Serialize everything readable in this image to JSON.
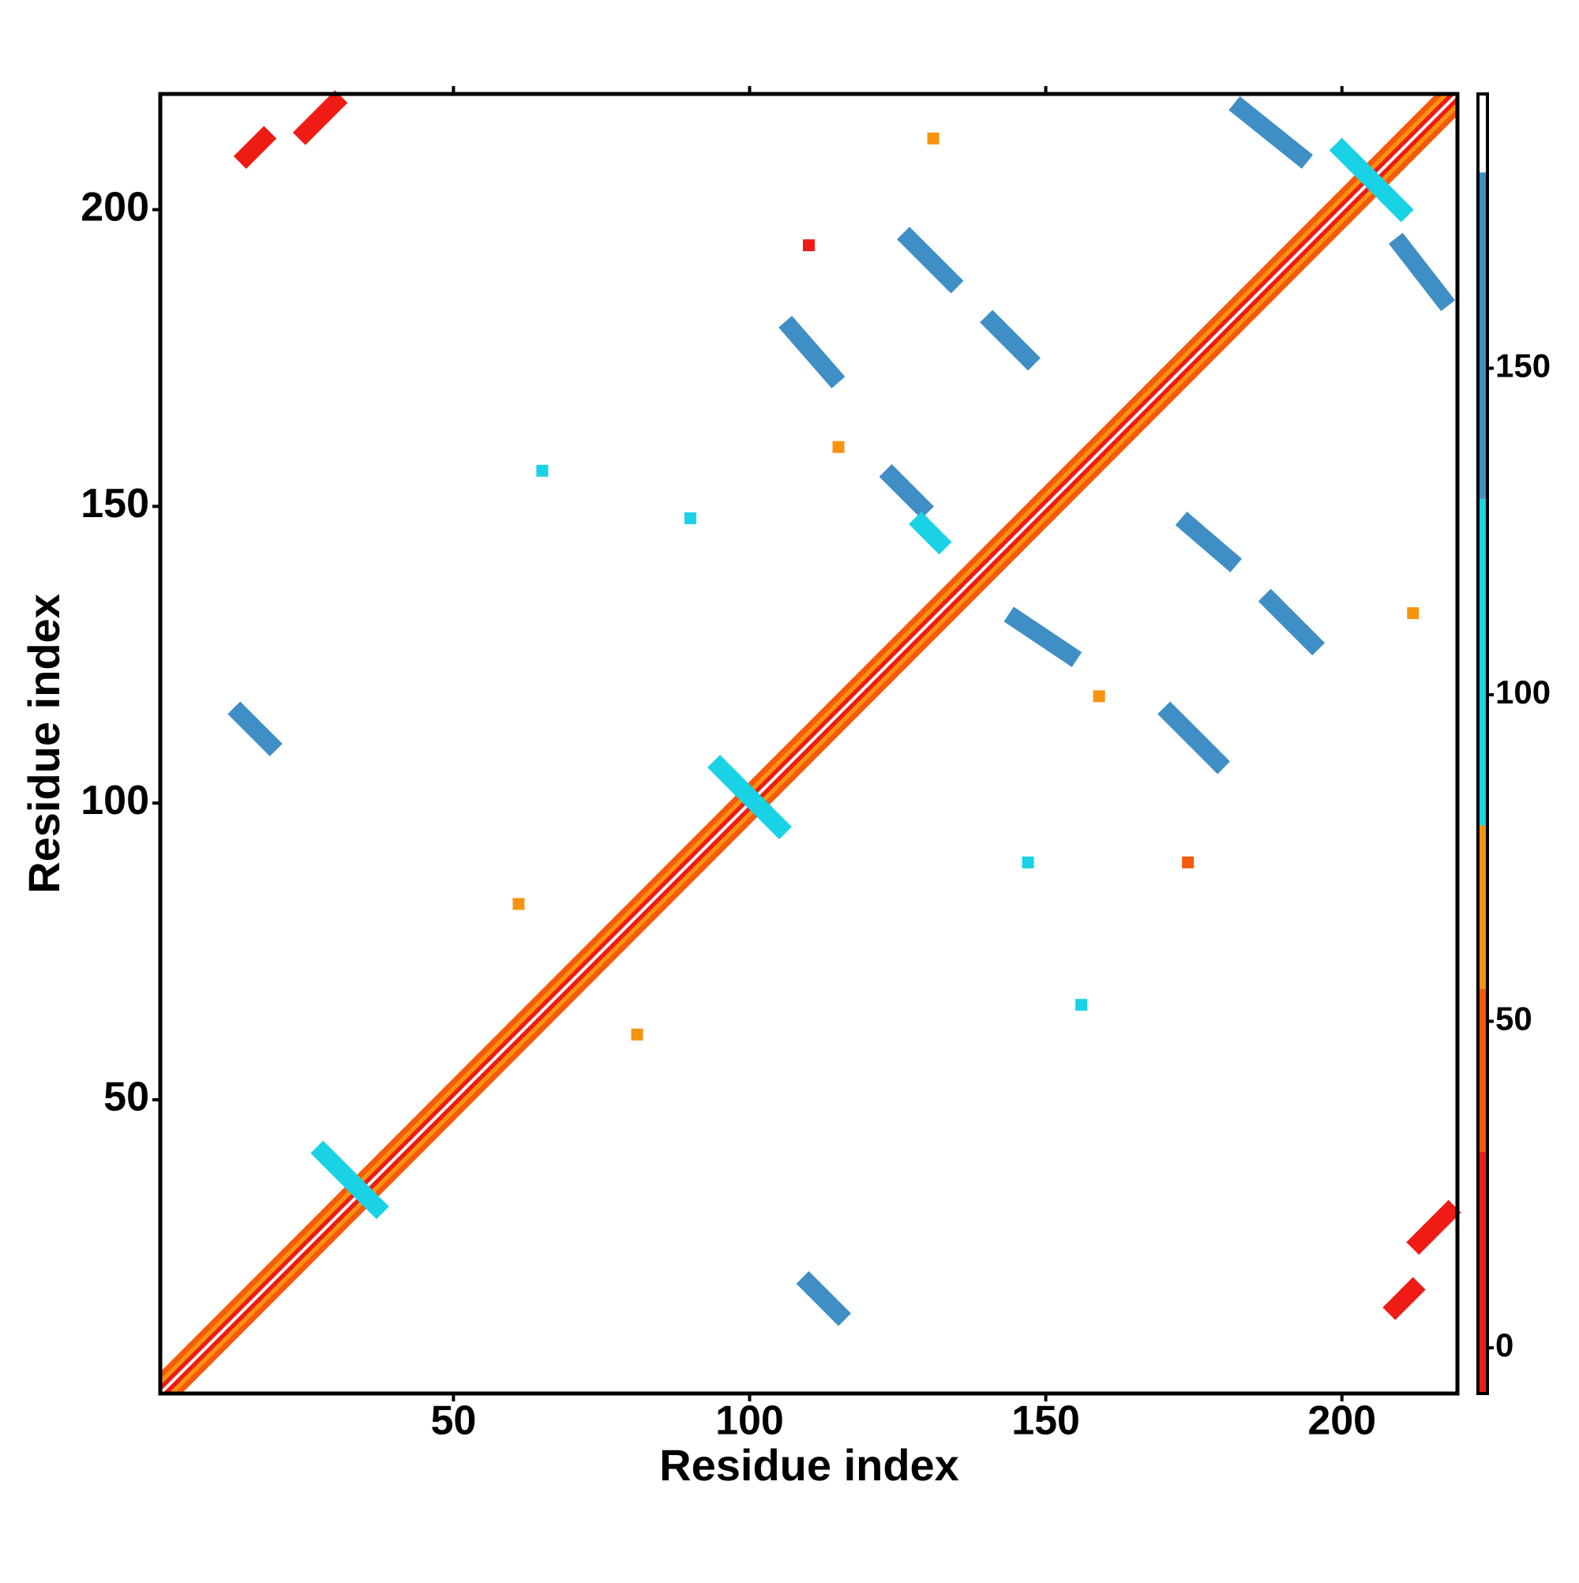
{
  "chart_data": {
    "type": "heatmap",
    "xlabel": "Residue index",
    "ylabel": "Residue index",
    "xlim": [
      0.5,
      219.5
    ],
    "ylim": [
      0.5,
      219.5
    ],
    "xticks": [
      50,
      100,
      150,
      200
    ],
    "yticks": [
      50,
      100,
      150,
      200
    ],
    "colorbar": {
      "lim": [
        -7,
        192
      ],
      "ticks": [
        0,
        50,
        100,
        150
      ],
      "bands": [
        {
          "range": [
            -7,
            30
          ],
          "color": "#ee1c14"
        },
        {
          "range": [
            30,
            55
          ],
          "color": "#f55a0a"
        },
        {
          "range": [
            55,
            80
          ],
          "color": "#f7930f"
        },
        {
          "range": [
            80,
            130
          ],
          "color": "#19d2e6"
        },
        {
          "range": [
            130,
            180
          ],
          "color": "#3f8fc6"
        },
        {
          "range": [
            180,
            192
          ],
          "color": "#ffffff"
        }
      ]
    },
    "diagonal": [
      {
        "offset": 1,
        "value": 15
      },
      {
        "offset": -1,
        "value": 15
      },
      {
        "offset": 2,
        "value": 60
      },
      {
        "offset": -2,
        "value": 60
      },
      {
        "offset": 3,
        "value": 45
      },
      {
        "offset": -3,
        "value": 45
      }
    ],
    "contacts": [
      {
        "x": [
          25,
          30
        ],
        "y": [
          213,
          218
        ],
        "value": 15
      },
      {
        "x": [
          15,
          18
        ],
        "y": [
          209,
          212
        ],
        "value": 10
      },
      {
        "x": [
          213,
          218
        ],
        "y": [
          26,
          31
        ],
        "value": 15
      },
      {
        "x": [
          209,
          212
        ],
        "y": [
          15,
          18
        ],
        "value": 10
      },
      {
        "x": [
          183,
          193
        ],
        "y": [
          217,
          209
        ],
        "value": 150
      },
      {
        "x": [
          210,
          217
        ],
        "y": [
          194,
          185
        ],
        "value": 150
      },
      {
        "x": [
          127,
          134
        ],
        "y": [
          195,
          188
        ],
        "value": 140
      },
      {
        "x": [
          107,
          114
        ],
        "y": [
          180,
          172
        ],
        "value": 150
      },
      {
        "x": [
          141,
          147
        ],
        "y": [
          181,
          175
        ],
        "value": 150
      },
      {
        "x": [
          124,
          129
        ],
        "y": [
          155,
          150
        ],
        "value": 140
      },
      {
        "x": [
          129,
          132
        ],
        "y": [
          147,
          144
        ],
        "value": 130
      },
      {
        "x": [
          174,
          181
        ],
        "y": [
          147,
          141
        ],
        "value": 150
      },
      {
        "x": [
          188,
          195
        ],
        "y": [
          134,
          127
        ],
        "value": 140
      },
      {
        "x": [
          145,
          154
        ],
        "y": [
          131,
          125
        ],
        "value": 140
      },
      {
        "x": [
          171,
          179
        ],
        "y": [
          115,
          107
        ],
        "value": 150
      },
      {
        "x": [
          14,
          19
        ],
        "y": [
          115,
          110
        ],
        "value": 150
      },
      {
        "x": [
          110,
          115
        ],
        "y": [
          19,
          14
        ],
        "value": 140
      },
      {
        "x": [
          28,
          37
        ],
        "y": [
          41,
          32
        ],
        "value": 100
      },
      {
        "x": [
          95,
          105
        ],
        "y": [
          106,
          96
        ],
        "value": 100
      },
      {
        "x": [
          200,
          210
        ],
        "y": [
          210,
          200
        ],
        "value": 100
      },
      {
        "x": [
          90,
          90
        ],
        "y": [
          148,
          148
        ],
        "value": 120
      },
      {
        "x": [
          65,
          65
        ],
        "y": [
          156,
          156
        ],
        "value": 120
      },
      {
        "x": [
          147,
          147
        ],
        "y": [
          90,
          90
        ],
        "value": 130
      },
      {
        "x": [
          61,
          61
        ],
        "y": [
          83,
          83
        ],
        "value": 60
      },
      {
        "x": [
          81,
          81
        ],
        "y": [
          61,
          61
        ],
        "value": 60
      },
      {
        "x": [
          115,
          115
        ],
        "y": [
          160,
          160
        ],
        "value": 60
      },
      {
        "x": [
          159,
          159
        ],
        "y": [
          118,
          118
        ],
        "value": 60
      },
      {
        "x": [
          174,
          174
        ],
        "y": [
          90,
          90
        ],
        "value": 45
      },
      {
        "x": [
          212,
          212
        ],
        "y": [
          132,
          132
        ],
        "value": 65
      },
      {
        "x": [
          110,
          110
        ],
        "y": [
          194,
          194
        ],
        "value": 25
      },
      {
        "x": [
          131,
          131
        ],
        "y": [
          212,
          212
        ],
        "value": 60
      },
      {
        "x": [
          156,
          156
        ],
        "y": [
          66,
          66
        ],
        "value": 120
      }
    ]
  }
}
